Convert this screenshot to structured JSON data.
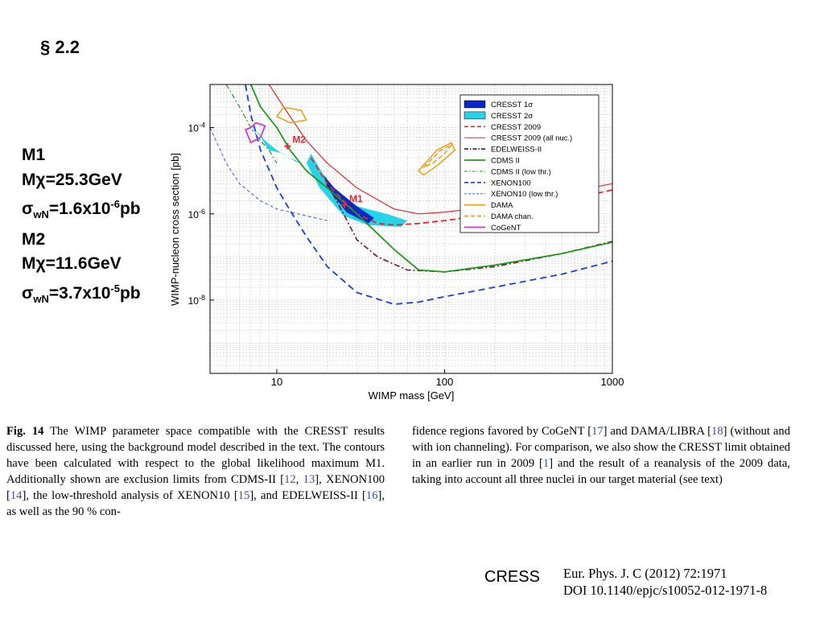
{
  "section": {
    "label": "§ 2.2"
  },
  "params": {
    "m1": {
      "name": "M1",
      "mass_lhs": "Mχ=",
      "mass": "25.3GeV",
      "sigma": "σ",
      "sigma_sub": "wN",
      "sigma_eq": "=1.6x10",
      "sigma_exp": "-6",
      "sigma_unit": "pb"
    },
    "m2": {
      "name": "M2",
      "mass_lhs": "Mχ=",
      "mass": "11.6GeV",
      "sigma": "σ",
      "sigma_sub": "wN",
      "sigma_eq": "=3.7x10",
      "sigma_exp": "-5",
      "sigma_unit": "pb"
    }
  },
  "chart_data": {
    "type": "line",
    "xlabel": "WIMP mass [GeV]",
    "ylabel": "WIMP-nucleon cross section [pb]",
    "x_scale": "log",
    "y_scale": "log",
    "xlim": [
      4,
      1000
    ],
    "ylim": [
      2e-10,
      0.001
    ],
    "x_tick_labels": [
      "10",
      "100",
      "1000"
    ],
    "y_tick_labels": [
      {
        "base": "10",
        "exp": "-4"
      },
      {
        "base": "10",
        "exp": "-6"
      },
      {
        "base": "10",
        "exp": "-8"
      }
    ],
    "grid": true,
    "legend_placement": "top-right",
    "legend": [
      {
        "label": "CRESST 1σ",
        "color": "#0a28c8",
        "style": "fill"
      },
      {
        "label": "CRESST 2σ",
        "color": "#27d3e6",
        "style": "fill"
      },
      {
        "label": "CRESST 2009",
        "color": "#e8262d",
        "style": "dashed"
      },
      {
        "label": "CRESST 2009 (all nuc.)",
        "color": "#e8262d",
        "style": "solid-thin"
      },
      {
        "label": "EDELWEISS-II",
        "color": "#6b1a2e",
        "style": "dashdot"
      },
      {
        "label": "CDMS II",
        "color": "#1f9a1f",
        "style": "solid"
      },
      {
        "label": "CDMS II (low thr.)",
        "color": "#1f9a1f",
        "style": "dashdot-thin"
      },
      {
        "label": "XENON100",
        "color": "#1a3fe0",
        "style": "dashed"
      },
      {
        "label": "XENON10 (low thr.)",
        "color": "#4a66e8",
        "style": "dashed-thin"
      },
      {
        "label": "DAMA",
        "color": "#f0a020",
        "style": "solid"
      },
      {
        "label": "DAMA chan.",
        "color": "#f0a020",
        "style": "dashed"
      },
      {
        "label": "CoGeNT",
        "color": "#d33ad3",
        "style": "solid"
      }
    ],
    "points": [
      {
        "label": "M1",
        "x": 25.3,
        "y": 1.6e-06
      },
      {
        "label": "M2",
        "x": 11.6,
        "y": 3.7e-05
      }
    ],
    "series": [
      {
        "key": "cresst2009",
        "points": [
          [
            16,
            2e-05
          ],
          [
            20,
            5e-06
          ],
          [
            25,
            2e-06
          ],
          [
            30,
            1e-06
          ],
          [
            40,
            6e-07
          ],
          [
            50,
            5.5e-07
          ],
          [
            70,
            6e-07
          ],
          [
            100,
            7e-07
          ],
          [
            200,
            1e-06
          ],
          [
            500,
            2e-06
          ],
          [
            1000,
            3.6e-06
          ]
        ]
      },
      {
        "key": "cresst2009_all",
        "points": [
          [
            9,
            0.001
          ],
          [
            11,
            0.0003
          ],
          [
            15,
            5e-05
          ],
          [
            20,
            1.5e-05
          ],
          [
            30,
            4e-06
          ],
          [
            50,
            1.3e-06
          ],
          [
            70,
            1e-06
          ],
          [
            100,
            1.1e-06
          ],
          [
            200,
            1.5e-06
          ],
          [
            500,
            3e-06
          ],
          [
            1000,
            5e-06
          ]
        ]
      },
      {
        "key": "edelweiss",
        "points": [
          [
            20,
            5e-06
          ],
          [
            25,
            1e-06
          ],
          [
            30,
            2.5e-07
          ],
          [
            40,
            1e-07
          ],
          [
            60,
            5e-08
          ],
          [
            100,
            4.5e-08
          ],
          [
            200,
            6e-08
          ],
          [
            500,
            1.2e-07
          ],
          [
            1000,
            2.3e-07
          ]
        ]
      },
      {
        "key": "cdms",
        "points": [
          [
            7,
            0.001
          ],
          [
            8,
            0.0003
          ],
          [
            10,
            0.0001
          ],
          [
            12,
            3e-05
          ],
          [
            15,
            1e-05
          ],
          [
            20,
            4e-06
          ],
          [
            30,
            1e-06
          ],
          [
            50,
            1.5e-07
          ],
          [
            70,
            5e-08
          ],
          [
            100,
            4.5e-08
          ],
          [
            200,
            6.5e-08
          ],
          [
            500,
            1.2e-07
          ],
          [
            1000,
            2.2e-07
          ]
        ]
      },
      {
        "key": "cdms_low",
        "points": [
          [
            5,
            0.001
          ],
          [
            6,
            0.0003
          ],
          [
            7,
            0.0001
          ],
          [
            8,
            5e-05
          ],
          [
            9,
            3e-05
          ],
          [
            10,
            1.5e-05
          ]
        ]
      },
      {
        "key": "xenon100",
        "points": [
          [
            6.5,
            0.001
          ],
          [
            7,
            0.0002
          ],
          [
            8,
            3e-05
          ],
          [
            10,
            4e-06
          ],
          [
            12,
            1.2e-06
          ],
          [
            15,
            3e-07
          ],
          [
            20,
            6e-08
          ],
          [
            30,
            1.5e-08
          ],
          [
            50,
            8e-09
          ],
          [
            70,
            9e-09
          ],
          [
            100,
            1.2e-08
          ],
          [
            200,
            2e-08
          ],
          [
            500,
            4e-08
          ],
          [
            1000,
            8e-08
          ]
        ]
      },
      {
        "key": "xenon10_low",
        "points": [
          [
            4,
            0.0001
          ],
          [
            5,
            1.5e-05
          ],
          [
            6,
            5e-06
          ],
          [
            8,
            2e-06
          ],
          [
            10,
            1.3e-06
          ],
          [
            15,
            9e-07
          ],
          [
            20,
            7e-07
          ]
        ]
      },
      {
        "key": "cresst_2sigma",
        "points": [
          [
            16,
            2.5e-05
          ],
          [
            19,
            8e-06
          ],
          [
            22,
            3.5e-06
          ],
          [
            30,
            1.5e-06
          ],
          [
            45,
            1e-06
          ],
          [
            60,
            7e-07
          ],
          [
            55,
            5e-07
          ],
          [
            35,
            5.5e-07
          ],
          [
            25,
            9e-07
          ],
          [
            18,
            4e-06
          ],
          [
            15,
            1.5e-05
          ],
          [
            16,
            2.5e-05
          ]
        ]
      },
      {
        "key": "cresst_1sigma",
        "points": [
          [
            19,
            8e-06
          ],
          [
            22,
            4e-06
          ],
          [
            30,
            1.5e-06
          ],
          [
            38,
            8e-07
          ],
          [
            35,
            6e-07
          ],
          [
            26,
            1.1e-06
          ],
          [
            20,
            4e-06
          ],
          [
            19,
            8e-06
          ]
        ]
      },
      {
        "key": "cresst_2sigma_m2",
        "points": [
          [
            8.5,
            5e-05
          ],
          [
            10,
            3e-05
          ],
          [
            12,
            2e-05
          ],
          [
            14,
            1.5e-05
          ],
          [
            15,
            1.4e-05
          ],
          [
            13,
            1.6e-05
          ],
          [
            11,
            2.5e-05
          ],
          [
            9,
            3e-05
          ],
          [
            8,
            6e-05
          ],
          [
            7.5,
            9e-05
          ],
          [
            8.5,
            5e-05
          ]
        ]
      },
      {
        "key": "dama",
        "points": [
          [
            70,
            1e-05
          ],
          [
            90,
            3e-05
          ],
          [
            110,
            4.5e-05
          ],
          [
            115,
            3e-05
          ],
          [
            90,
            1.3e-05
          ],
          [
            75,
            8e-06
          ],
          [
            70,
            1e-05
          ]
        ]
      },
      {
        "key": "dama_chan",
        "points": [
          [
            75,
            1.2e-05
          ],
          [
            95,
            3e-05
          ],
          [
            110,
            4e-05
          ],
          [
            100,
            2.5e-05
          ],
          [
            85,
            1.5e-05
          ],
          [
            75,
            1.2e-05
          ]
        ]
      },
      {
        "key": "dama_low",
        "points": [
          [
            10,
            0.00018
          ],
          [
            12,
            0.00013
          ],
          [
            15,
            0.00015
          ],
          [
            14,
            0.00025
          ],
          [
            11,
            0.0003
          ],
          [
            10,
            0.00018
          ]
        ]
      },
      {
        "key": "cogent",
        "points": [
          [
            7,
            4.5e-05
          ],
          [
            8,
            6e-05
          ],
          [
            8.5,
            0.00011
          ],
          [
            7.5,
            0.00013
          ],
          [
            7,
            0.0001
          ],
          [
            6.5,
            9e-05
          ],
          [
            7,
            4.5e-05
          ]
        ]
      }
    ]
  },
  "caption": {
    "left": {
      "fig": "Fig. 14",
      "t1": "  The WIMP parameter space compatible with the CRESST results discussed here, using the background model described in the text. The contours have been calculated with respect to the global likelihood maximum M1. Additionally shown are exclusion limits from CDMS-II [",
      "r12": "12",
      "c1": ", ",
      "r13": "13",
      "t2": "], XENON100 [",
      "r14": "14",
      "t3": "], the low-threshold analysis of XENON10 [",
      "r15": "15",
      "t4": "], and EDELWEISS-II [",
      "r16": "16",
      "t5": "], as well as the 90 % con-"
    },
    "right": {
      "t1": "fidence regions favored by CoGeNT [",
      "r17": "17",
      "t2": "] and DAMA/LIBRA [",
      "r18": "18",
      "t3": "] (without and with ion channeling). For comparison, we also show the CRESST limit obtained in an earlier run in 2009 [",
      "r1": "1",
      "t4": "] and the result of a reanalysis of the 2009 data, taking into account all three nuclei in our target material (see text)"
    }
  },
  "footer": {
    "cress": "CRESS",
    "journal": "Eur. Phys. J. C (2012) 72:1971",
    "doi": "DOI 10.1140/epjc/s10052-012-1971-8"
  }
}
